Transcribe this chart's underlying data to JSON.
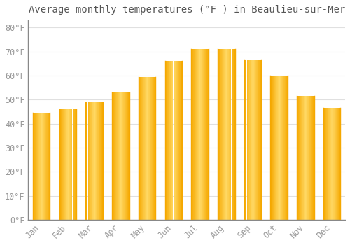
{
  "title": "Average monthly temperatures (°F ) in Beaulieu-sur-Mer",
  "months": [
    "Jan",
    "Feb",
    "Mar",
    "Apr",
    "May",
    "Jun",
    "Jul",
    "Aug",
    "Sep",
    "Oct",
    "Nov",
    "Dec"
  ],
  "values": [
    44.5,
    46.0,
    49.0,
    53.0,
    59.5,
    66.0,
    71.0,
    71.0,
    66.5,
    60.0,
    51.5,
    46.5
  ],
  "bar_color_center": "#FFD966",
  "bar_color_edge": "#F5A800",
  "background_color": "#FFFFFF",
  "plot_bg_color": "#FFFFFF",
  "grid_color": "#E0E0E0",
  "tick_label_color": "#999999",
  "title_color": "#555555",
  "ylim": [
    0,
    83
  ],
  "yticks": [
    0,
    10,
    20,
    30,
    40,
    50,
    60,
    70,
    80
  ],
  "ytick_labels": [
    "0°F",
    "10°F",
    "20°F",
    "30°F",
    "40°F",
    "50°F",
    "60°F",
    "70°F",
    "80°F"
  ],
  "title_fontsize": 10,
  "tick_fontsize": 8.5,
  "bar_width": 0.65
}
